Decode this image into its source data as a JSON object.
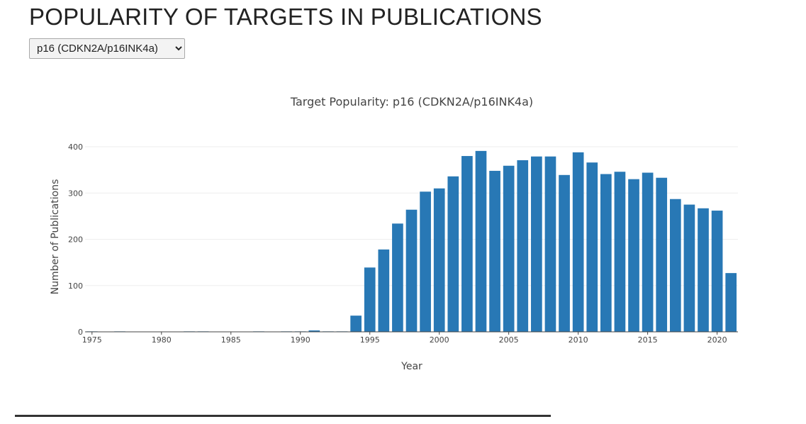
{
  "page": {
    "title": "POPULARITY OF TARGETS IN PUBLICATIONS"
  },
  "target_select": {
    "options": [
      "p16 (CDKN2A/p16INK4a)"
    ],
    "selected": "p16 (CDKN2A/p16INK4a)"
  },
  "colors": {
    "bar": "#2878b5",
    "grid": "#eeeeee",
    "axis": "#444444",
    "tick_text": "#444444"
  },
  "chart_data": {
    "type": "bar",
    "title": "Target Popularity: p16 (CDKN2A/p16INK4a)",
    "xlabel": "Year",
    "ylabel": "Number of Publications",
    "ylim": [
      0,
      400
    ],
    "xlim": [
      1974.5,
      2021.5
    ],
    "x_ticks": [
      1975,
      1980,
      1985,
      1990,
      1995,
      2000,
      2005,
      2010,
      2015,
      2020
    ],
    "y_ticks": [
      0,
      100,
      200,
      300,
      400
    ],
    "grid": true,
    "legend": "none",
    "x": [
      1975,
      1976,
      1977,
      1978,
      1979,
      1980,
      1981,
      1982,
      1983,
      1984,
      1985,
      1986,
      1987,
      1988,
      1989,
      1990,
      1991,
      1992,
      1993,
      1994,
      1995,
      1996,
      1997,
      1998,
      1999,
      2000,
      2001,
      2002,
      2003,
      2004,
      2005,
      2006,
      2007,
      2008,
      2009,
      2010,
      2011,
      2012,
      2013,
      2014,
      2015,
      2016,
      2017,
      2018,
      2019,
      2020,
      2021
    ],
    "values": [
      1,
      0,
      1,
      0,
      0,
      0,
      0,
      1,
      1,
      0,
      0,
      0,
      1,
      0,
      1,
      1,
      3,
      1,
      1,
      35,
      139,
      178,
      234,
      264,
      303,
      310,
      336,
      380,
      391,
      348,
      359,
      371,
      379,
      379,
      339,
      388,
      366,
      341,
      346,
      330,
      344,
      333,
      287,
      275,
      267,
      262,
      127
    ]
  }
}
